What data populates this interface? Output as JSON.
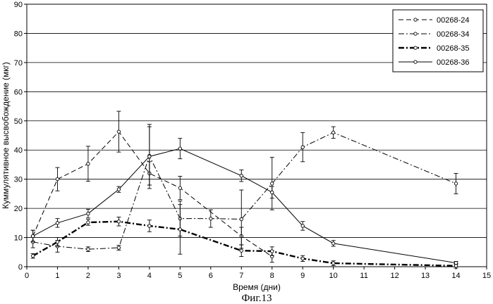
{
  "chart_data": {
    "type": "line",
    "title": "",
    "xlabel": "Время (дни)",
    "ylabel": "Куммулятивное высвобождение (мкг)",
    "caption": "Фиг.13",
    "xlim": [
      0,
      15
    ],
    "ylim": [
      0,
      90
    ],
    "x_ticks": [
      0,
      1,
      2,
      3,
      4,
      5,
      6,
      7,
      8,
      9,
      10,
      11,
      12,
      13,
      14,
      15
    ],
    "y_ticks": [
      0,
      10,
      20,
      30,
      40,
      50,
      60,
      70,
      80,
      90
    ],
    "grid": "horizontal",
    "legend_position": "top-right",
    "series": [
      {
        "name": "00268-24",
        "style": "dashed",
        "marker": "circle",
        "x": [
          0.2,
          1,
          2,
          3,
          4,
          5,
          7,
          8
        ],
        "y": [
          10.5,
          30,
          35.3,
          46.3,
          32,
          27,
          10.5,
          3.5
        ],
        "err": [
          2,
          4,
          6,
          7,
          4,
          4,
          3,
          2
        ]
      },
      {
        "name": "00268-34",
        "style": "dashdot",
        "marker": "circle",
        "x": [
          0.2,
          1,
          2,
          3,
          4,
          5,
          6,
          7,
          8,
          9,
          10,
          14
        ],
        "y": [
          8.5,
          7,
          6,
          6.5,
          38,
          16.5,
          16.5,
          16.3,
          28.5,
          41,
          46,
          28.5
        ],
        "err": [
          2,
          2,
          0.8,
          0.8,
          10,
          6,
          3,
          10,
          9,
          5,
          2,
          3.5
        ]
      },
      {
        "name": "00268-35",
        "style": "dashdot-bold",
        "marker": "circle",
        "x": [
          0.2,
          1,
          2,
          3,
          4,
          5,
          7,
          8,
          9,
          10,
          14
        ],
        "y": [
          3.7,
          8.5,
          15.2,
          15.5,
          14,
          12.8,
          5.5,
          5.3,
          2.8,
          1.2,
          0.3
        ],
        "err": [
          0.8,
          1.5,
          1,
          1.5,
          2,
          8.5,
          2,
          1.5,
          1,
          0.8,
          0.8
        ]
      },
      {
        "name": "00268-36",
        "style": "solid",
        "marker": "circle",
        "x": [
          0.2,
          1,
          2,
          3,
          4,
          5,
          7,
          8,
          9,
          10,
          14
        ],
        "y": [
          10.5,
          15,
          18.2,
          26.5,
          37.8,
          40.5,
          31.2,
          25.5,
          14,
          8,
          1.3
        ],
        "err": [
          2,
          1.5,
          1.5,
          1,
          11,
          3.5,
          2,
          2,
          1.5,
          1,
          0.5
        ]
      }
    ]
  }
}
